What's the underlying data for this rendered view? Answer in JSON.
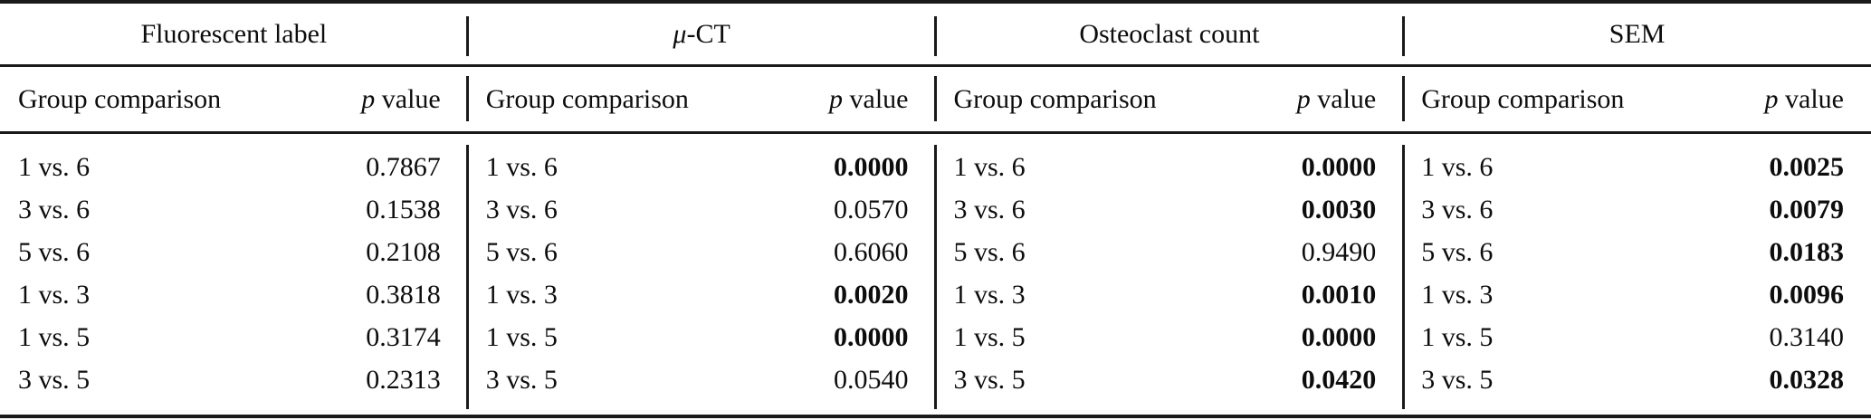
{
  "colors": {
    "text": "#0d0d0d",
    "rule": "#1a1a1a",
    "background": "#ffffff"
  },
  "table": {
    "groups": [
      {
        "title_italic": "",
        "title_rest": "Fluorescent label",
        "col1_header": "Group comparison",
        "col2_header_symbol": "p",
        "col2_header_rest": " value",
        "rows": [
          {
            "comparison": "1 vs. 6",
            "p": "0.7867",
            "bold": false
          },
          {
            "comparison": "3 vs. 6",
            "p": "0.1538",
            "bold": false
          },
          {
            "comparison": "5 vs. 6",
            "p": "0.2108",
            "bold": false
          },
          {
            "comparison": "1 vs. 3",
            "p": "0.3818",
            "bold": false
          },
          {
            "comparison": "1 vs. 5",
            "p": "0.3174",
            "bold": false
          },
          {
            "comparison": "3 vs. 5",
            "p": "0.2313",
            "bold": false
          }
        ]
      },
      {
        "title_italic": "μ",
        "title_rest": "-CT",
        "col1_header": "Group comparison",
        "col2_header_symbol": "p",
        "col2_header_rest": " value",
        "rows": [
          {
            "comparison": "1 vs. 6",
            "p": "0.0000",
            "bold": true
          },
          {
            "comparison": "3 vs. 6",
            "p": "0.0570",
            "bold": false
          },
          {
            "comparison": "5 vs. 6",
            "p": "0.6060",
            "bold": false
          },
          {
            "comparison": "1 vs. 3",
            "p": "0.0020",
            "bold": true
          },
          {
            "comparison": "1 vs. 5",
            "p": "0.0000",
            "bold": true
          },
          {
            "comparison": "3 vs. 5",
            "p": "0.0540",
            "bold": false
          }
        ]
      },
      {
        "title_italic": "",
        "title_rest": "Osteoclast count",
        "col1_header": "Group comparison",
        "col2_header_symbol": "p",
        "col2_header_rest": " value",
        "rows": [
          {
            "comparison": "1 vs. 6",
            "p": "0.0000",
            "bold": true
          },
          {
            "comparison": "3 vs. 6",
            "p": "0.0030",
            "bold": true
          },
          {
            "comparison": "5 vs. 6",
            "p": "0.9490",
            "bold": false
          },
          {
            "comparison": "1 vs. 3",
            "p": "0.0010",
            "bold": true
          },
          {
            "comparison": "1 vs. 5",
            "p": "0.0000",
            "bold": true
          },
          {
            "comparison": "3 vs. 5",
            "p": "0.0420",
            "bold": true
          }
        ]
      },
      {
        "title_italic": "",
        "title_rest": "SEM",
        "col1_header": "Group comparison",
        "col2_header_symbol": "p",
        "col2_header_rest": " value",
        "rows": [
          {
            "comparison": "1 vs. 6",
            "p": "0.0025",
            "bold": true
          },
          {
            "comparison": "3 vs. 6",
            "p": "0.0079",
            "bold": true
          },
          {
            "comparison": "5 vs. 6",
            "p": "0.0183",
            "bold": true
          },
          {
            "comparison": "1 vs. 3",
            "p": "0.0096",
            "bold": true
          },
          {
            "comparison": "1 vs. 5",
            "p": "0.3140",
            "bold": false
          },
          {
            "comparison": "3 vs. 5",
            "p": "0.0328",
            "bold": true
          }
        ]
      }
    ]
  }
}
